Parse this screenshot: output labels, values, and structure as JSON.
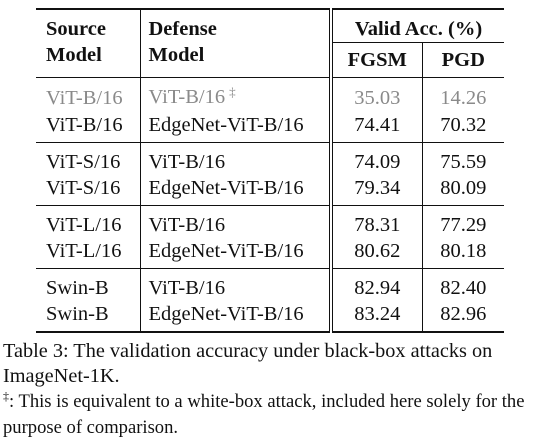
{
  "table": {
    "headers": {
      "source_line1": "Source",
      "source_line2": "Model",
      "defense_line1": "Defense",
      "defense_line2": "Model",
      "valid_acc": "Valid Acc. (%)",
      "fgsm": "FGSM",
      "pgd": "PGD"
    },
    "groups": [
      {
        "rows": [
          {
            "source": "ViT-B/16",
            "defense": "ViT-B/16",
            "mark": "‡",
            "fgsm": "35.03",
            "pgd": "14.26",
            "grey": true
          },
          {
            "source": "ViT-B/16",
            "defense": "EdgeNet-ViT-B/16",
            "mark": "",
            "fgsm": "74.41",
            "pgd": "70.32",
            "grey": false
          }
        ]
      },
      {
        "rows": [
          {
            "source": "ViT-S/16",
            "defense": "ViT-B/16",
            "mark": "",
            "fgsm": "74.09",
            "pgd": "75.59",
            "grey": false
          },
          {
            "source": "ViT-S/16",
            "defense": "EdgeNet-ViT-B/16",
            "mark": "",
            "fgsm": "79.34",
            "pgd": "80.09",
            "grey": false
          }
        ]
      },
      {
        "rows": [
          {
            "source": "ViT-L/16",
            "defense": "ViT-B/16",
            "mark": "",
            "fgsm": "78.31",
            "pgd": "77.29",
            "grey": false
          },
          {
            "source": "ViT-L/16",
            "defense": "EdgeNet-ViT-B/16",
            "mark": "",
            "fgsm": "80.62",
            "pgd": "80.18",
            "grey": false
          }
        ]
      },
      {
        "rows": [
          {
            "source": "Swin-B",
            "defense": "ViT-B/16",
            "mark": "",
            "fgsm": "82.94",
            "pgd": "82.40",
            "grey": false
          },
          {
            "source": "Swin-B",
            "defense": "EdgeNet-ViT-B/16",
            "mark": "",
            "fgsm": "83.24",
            "pgd": "82.96",
            "grey": false
          }
        ]
      }
    ]
  },
  "caption": "Table 3: The validation accuracy under black-box attacks on ImageNet-1K.",
  "footnote": {
    "mark": "‡",
    "text": ": This is equivalent to a white-box attack, included here solely for the purpose of comparison."
  },
  "colors": {
    "text": "#111111",
    "grey_row": "#8a8a8a"
  }
}
